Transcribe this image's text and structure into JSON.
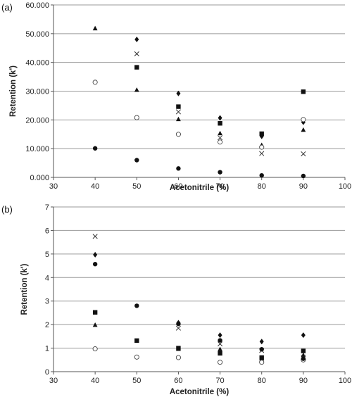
{
  "chart_data": [
    {
      "type": "scatter",
      "panel_label": "(a)",
      "xlabel": "Acetonitrile (%)",
      "ylabel": "Retention (k')",
      "xlim": [
        30,
        100
      ],
      "ylim": [
        0,
        60
      ],
      "xticks": [
        30,
        40,
        50,
        60,
        70,
        80,
        90,
        100
      ],
      "yticks": [
        0,
        10,
        20,
        30,
        40,
        50,
        60
      ],
      "xtick_labels": [
        "30",
        "40",
        "50",
        "60",
        "70",
        "80",
        "90",
        "100"
      ],
      "ytick_labels": [
        "0.000",
        "10.000",
        "20.000",
        "30.000",
        "40.000",
        "50.000",
        "60.000"
      ],
      "grid": "horizontal",
      "series": [
        {
          "marker": "diamond",
          "x": [
            50,
            60,
            70,
            80,
            90
          ],
          "y": [
            48.0,
            29.2,
            20.7,
            14.3,
            19.2
          ]
        },
        {
          "marker": "square",
          "x": [
            50,
            60,
            70,
            80,
            90
          ],
          "y": [
            38.3,
            24.6,
            18.8,
            15.2,
            29.8
          ]
        },
        {
          "marker": "triangle",
          "x": [
            40,
            50,
            60,
            70,
            80,
            90
          ],
          "y": [
            51.8,
            30.4,
            20.2,
            15.3,
            11.2,
            16.5
          ]
        },
        {
          "marker": "cross",
          "x": [
            50,
            60,
            70,
            80,
            90
          ],
          "y": [
            43.0,
            22.8,
            13.8,
            8.3,
            8.2
          ]
        },
        {
          "marker": "open-circle",
          "x": [
            40,
            50,
            60,
            70,
            80,
            90
          ],
          "y": [
            33.1,
            20.8,
            15.0,
            12.3,
            10.5,
            20.1
          ]
        },
        {
          "marker": "filled-circle",
          "x": [
            40,
            50,
            60,
            70,
            80,
            90
          ],
          "y": [
            10.1,
            6.0,
            3.1,
            1.8,
            0.7,
            0.5
          ]
        }
      ]
    },
    {
      "type": "scatter",
      "panel_label": "(b)",
      "xlabel": "Acetonitrile (%)",
      "ylabel": "Retention (k')",
      "xlim": [
        30,
        100
      ],
      "ylim": [
        0,
        7
      ],
      "xticks": [
        30,
        40,
        50,
        60,
        70,
        80,
        90,
        100
      ],
      "yticks": [
        0,
        1,
        2,
        3,
        4,
        5,
        6,
        7
      ],
      "xtick_labels": [
        "30",
        "40",
        "50",
        "60",
        "70",
        "80",
        "90",
        "100"
      ],
      "ytick_labels": [
        "0",
        "1",
        "2",
        "3",
        "4",
        "5",
        "6",
        "7"
      ],
      "grid": "horizontal",
      "series": [
        {
          "marker": "diamond",
          "x": [
            40,
            60,
            70,
            80,
            90
          ],
          "y": [
            4.97,
            2.08,
            1.55,
            1.28,
            1.55
          ]
        },
        {
          "marker": "square",
          "x": [
            40,
            50,
            60,
            70,
            80,
            90
          ],
          "y": [
            2.52,
            1.32,
            1.0,
            0.78,
            0.6,
            0.88
          ]
        },
        {
          "marker": "triangle",
          "x": [
            40,
            60,
            70,
            80,
            90
          ],
          "y": [
            1.98,
            0.96,
            0.95,
            0.55,
            0.7
          ]
        },
        {
          "marker": "cross",
          "x": [
            40,
            60,
            70,
            80,
            90
          ],
          "y": [
            5.75,
            1.85,
            1.18,
            0.9,
            0.62
          ]
        },
        {
          "marker": "open-circle",
          "x": [
            40,
            50,
            60,
            70,
            80,
            90
          ],
          "y": [
            0.97,
            0.62,
            0.6,
            0.4,
            0.4,
            0.5
          ]
        },
        {
          "marker": "filled-circle",
          "x": [
            40,
            50,
            60,
            70,
            80,
            90
          ],
          "y": [
            4.57,
            2.8,
            2.03,
            1.33,
            0.95,
            0.55
          ]
        }
      ]
    }
  ]
}
